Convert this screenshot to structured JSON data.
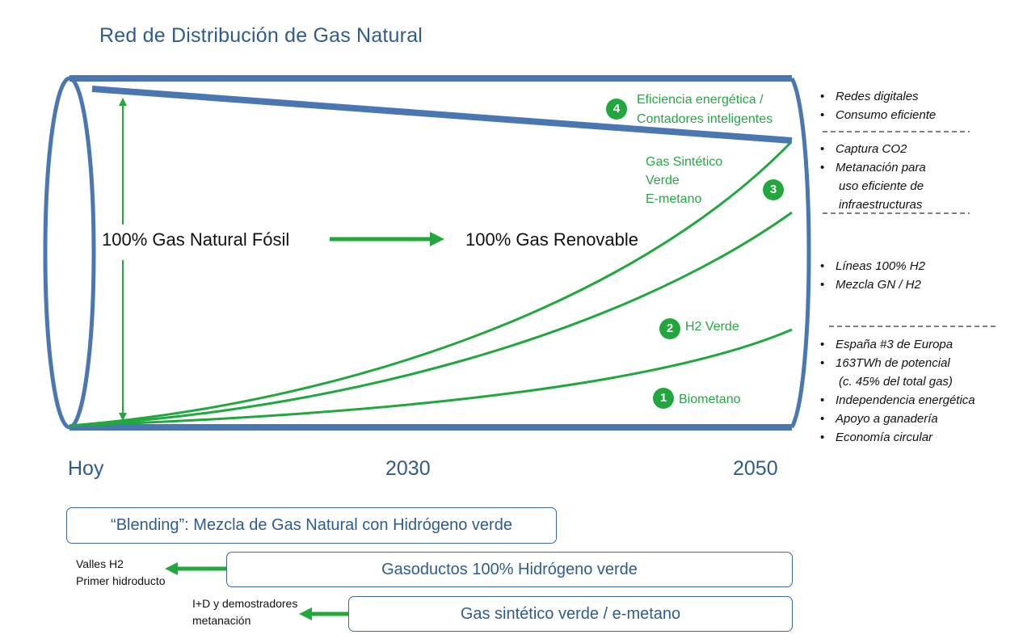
{
  "title": "Red de Distribución de Gas Natural",
  "pipe_labels": {
    "fossil": "100% Gas Natural Fósil",
    "renewable": "100% Gas Renovable"
  },
  "streams": [
    {
      "number": "4",
      "lines": [
        "Eficiencia energética /",
        "Contadores inteligentes"
      ]
    },
    {
      "number": "3",
      "lines": [
        "Gas Sintético",
        "Verde",
        "E-metano"
      ]
    },
    {
      "number": "2",
      "lines": [
        "H2 Verde"
      ]
    },
    {
      "number": "1",
      "lines": [
        "Biometano"
      ]
    }
  ],
  "timeline": {
    "start": "Hoy",
    "mid": "2030",
    "end": "2050"
  },
  "side_notes": {
    "group4": [
      "Redes digitales",
      "Consumo eficiente"
    ],
    "group3": [
      "Captura CO2",
      "Metanación para",
      "uso eficiente de",
      "infraestructuras"
    ],
    "group2": [
      "Líneas 100% H2",
      "Mezcla GN / H2"
    ],
    "group1": [
      "España #3 de Europa",
      "163TWh de potencial",
      "(c. 45% del total gas)",
      "Independencia energética",
      "Apoyo a ganadería",
      "Economía circular"
    ]
  },
  "roadmap": {
    "blending": "“Blending”: Mezcla de Gas Natural con Hidrógeno verde",
    "pipelines": "Gasoductos 100% Hidrógeno verde",
    "synthetic": "Gas sintético verde / e-metano",
    "note_h2": [
      "Valles H2",
      "Primer hidroducto"
    ],
    "note_metanacion": [
      "I+D y demostradores",
      "metanación"
    ]
  },
  "colors": {
    "pipe": "#4a76b1",
    "green": "#22a63e",
    "title": "#2e5c8f"
  }
}
